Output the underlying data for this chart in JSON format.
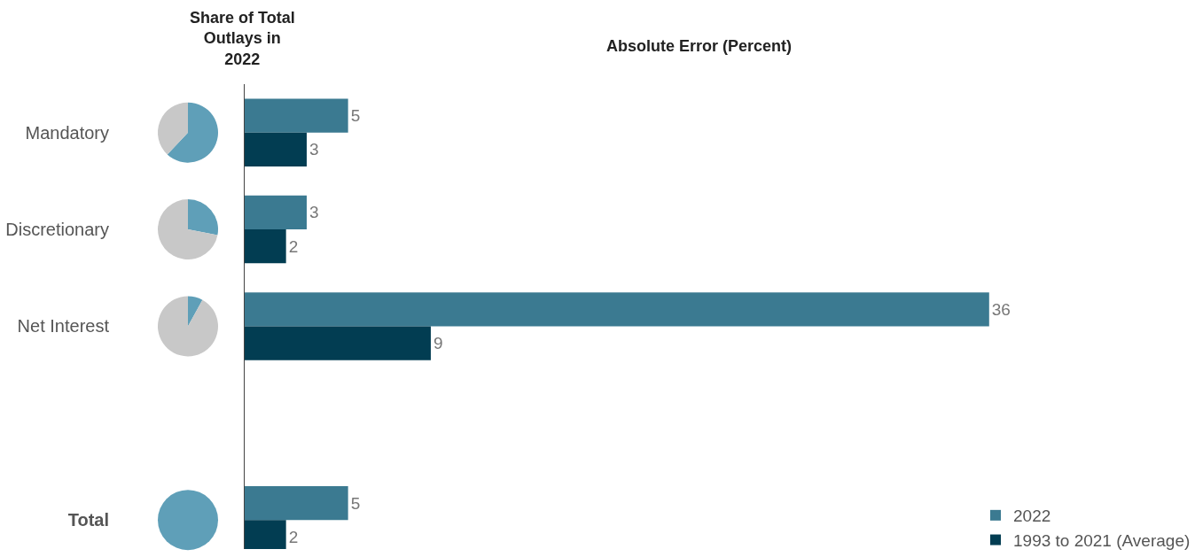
{
  "chart_data": [
    {
      "type": "bar",
      "title": "Absolute Error (Percent)",
      "orientation": "horizontal",
      "categories": [
        "Mandatory",
        "Discretionary",
        "Net Interest",
        null,
        "Total"
      ],
      "series": [
        {
          "name": "2022",
          "color": "#3b7a91",
          "values": [
            5,
            3,
            36,
            null,
            5
          ]
        },
        {
          "name": "1993 to 2021 (Average)",
          "color": "#023d52",
          "values": [
            3,
            2,
            9,
            null,
            2
          ]
        }
      ],
      "data_labels": true,
      "legend": "bottom right",
      "tick_labels": "y"
    },
    {
      "type": "pie",
      "title": "Share of Total Outlays in 2022",
      "categories": [
        null,
        null
      ],
      "values": [
        62,
        38
      ],
      "colors": [
        "#5f9fb8",
        "#c8c8c8"
      ]
    },
    {
      "type": "pie",
      "categories": [
        null,
        null
      ],
      "values": [
        28,
        72
      ],
      "colors": [
        "#5f9fb8",
        "#c8c8c8"
      ]
    },
    {
      "type": "pie",
      "categories": [
        null,
        null
      ],
      "values": [
        8,
        92
      ],
      "colors": [
        "#5f9fb8",
        "#c8c8c8"
      ]
    },
    {
      "type": "pie",
      "categories": [
        null
      ],
      "values": [
        100
      ],
      "colors": [
        "#5f9fb8"
      ]
    }
  ]
}
